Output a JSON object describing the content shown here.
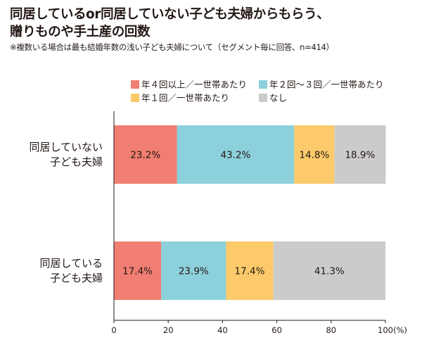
{
  "title_line1": "同居しているor同居していない子ども夫婦からもらう、",
  "title_line2": "贈りものや手土産の回数",
  "note": "※複数いる場合は最も結婚年数の浅い子ども夫婦について（セグメント毎に回答、n=414）",
  "chart_data": {
    "type": "bar",
    "orientation": "horizontal",
    "stacked": true,
    "categories": [
      [
        "同居していない",
        "子ども夫婦"
      ],
      [
        "同居している",
        "子ども夫婦"
      ]
    ],
    "series": [
      {
        "name": "年４回以上／一世帯あたり",
        "color": "#f07e72",
        "values": [
          23.2,
          17.4
        ],
        "labels": [
          "23.2%",
          "17.4%"
        ]
      },
      {
        "name": "年２回～３回／一世帯あたり",
        "color": "#8cd0db",
        "values": [
          43.2,
          23.9
        ],
        "labels": [
          "43.2%",
          "23.9%"
        ]
      },
      {
        "name": "年１回／一世帯あたり",
        "color": "#fcca6a",
        "values": [
          14.8,
          17.4
        ],
        "labels": [
          "14.8%",
          "17.4%"
        ]
      },
      {
        "name": "なし",
        "color": "#cbcbcb",
        "values": [
          18.9,
          41.3
        ],
        "labels": [
          "18.9%",
          "41.3%"
        ]
      }
    ],
    "xlim": [
      0,
      100
    ],
    "xticks": [
      "0",
      "20",
      "40",
      "60",
      "80",
      "100"
    ],
    "x_unit": "(%)",
    "legend_position": "top"
  }
}
